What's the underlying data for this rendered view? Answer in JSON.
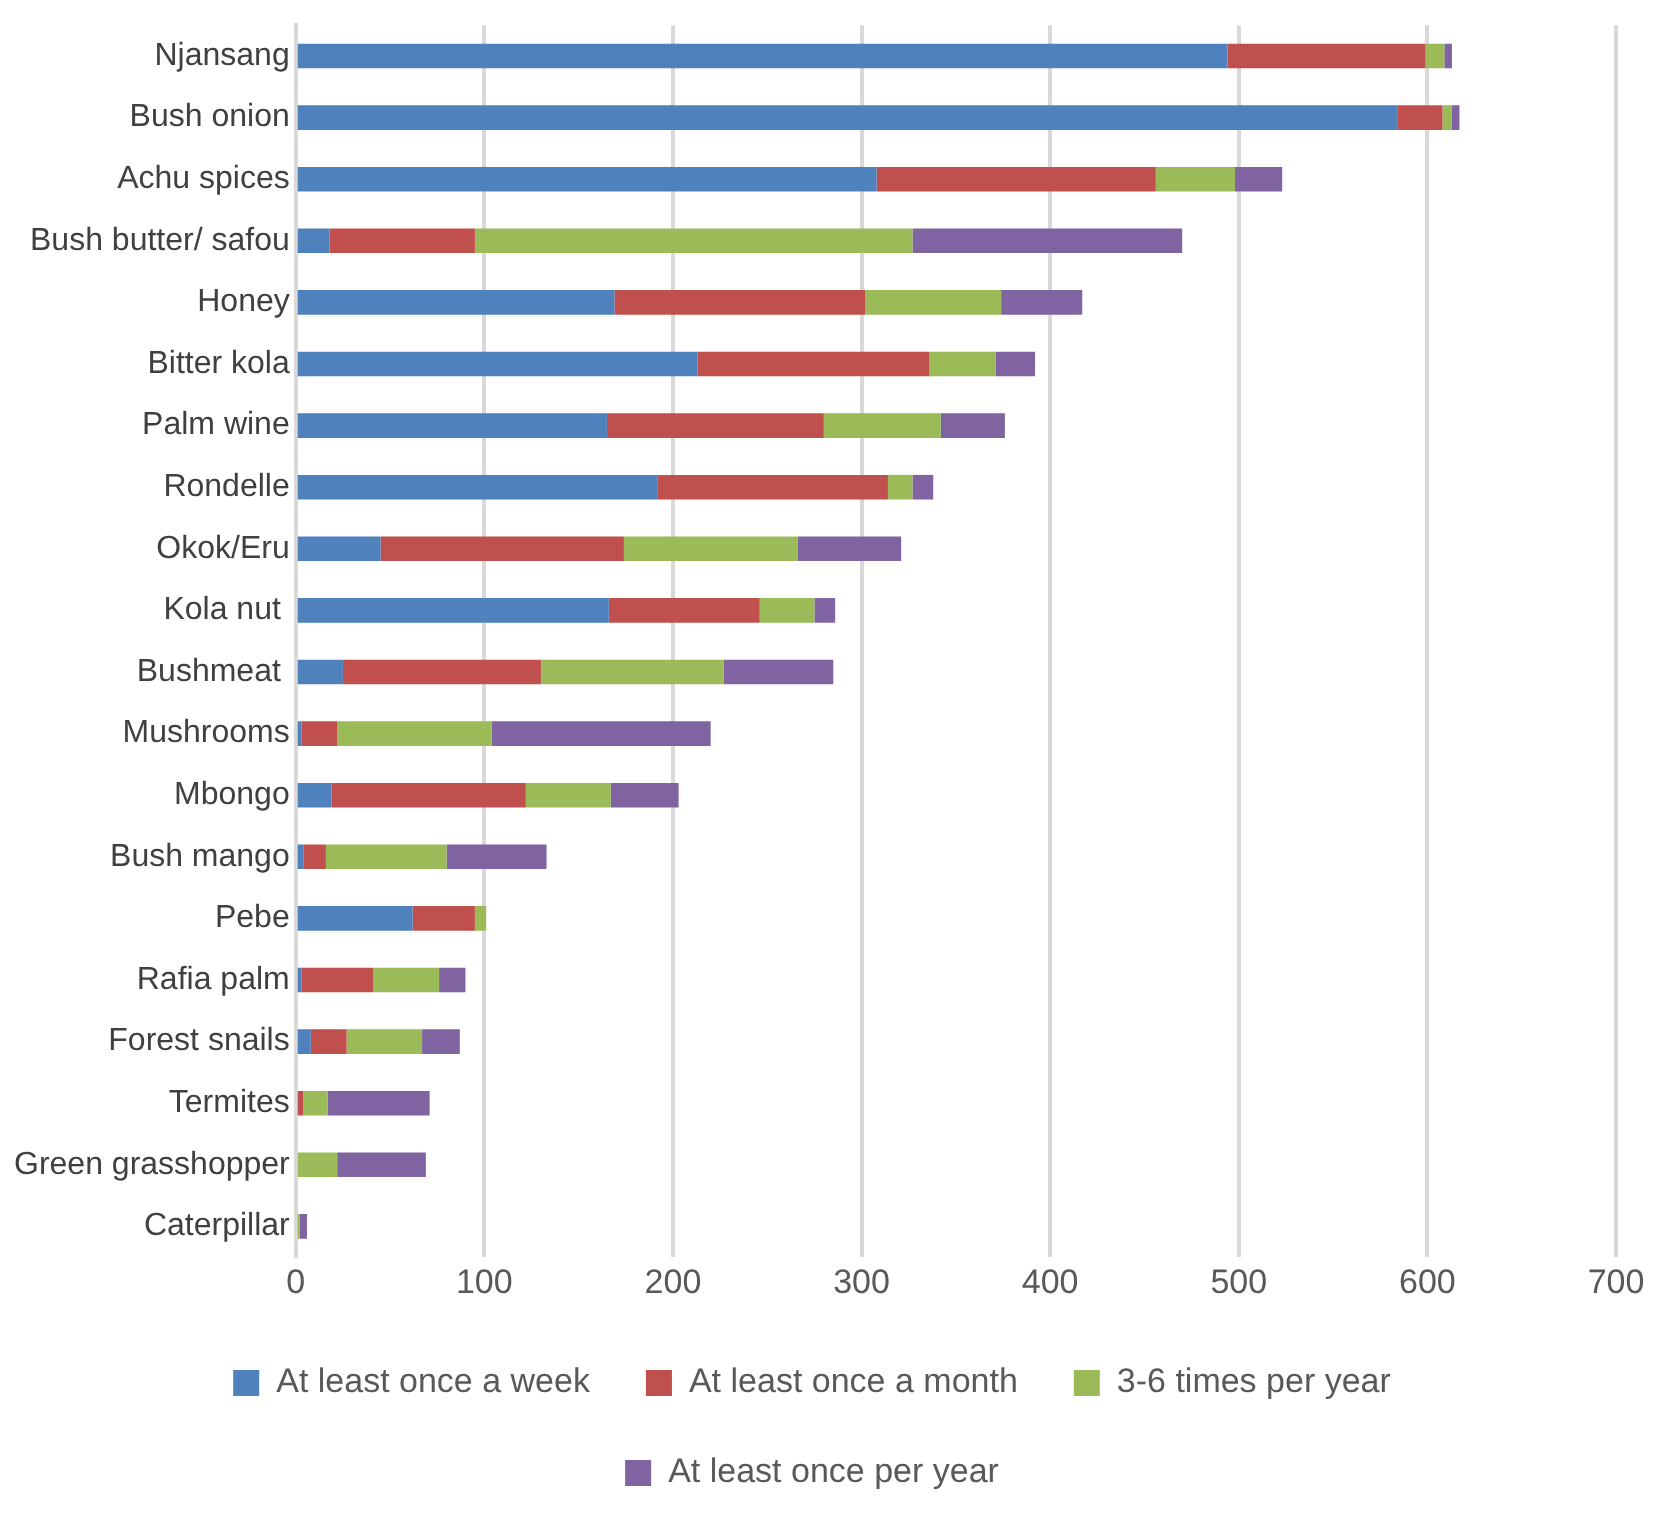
{
  "chart_data": {
    "type": "bar",
    "orientation": "horizontal",
    "stacked": true,
    "categories": [
      "Njansang",
      "Bush onion",
      "Achu spices",
      "Bush butter/ safou",
      "Honey",
      "Bitter kola",
      "Palm wine",
      "Rondelle",
      "Okok/Eru",
      "Kola nut ",
      "Bushmeat ",
      "Mushrooms",
      "Mbongo",
      "Bush mango",
      "Pebe",
      "Rafia palm",
      "Forest snails",
      "Termites",
      "Green grasshopper",
      "Caterpillar"
    ],
    "series": [
      {
        "name": "At least once a week",
        "color": "#4f81bd",
        "values": [
          494,
          584,
          308,
          18,
          169,
          213,
          165,
          192,
          45,
          166,
          25,
          3,
          19,
          4,
          62,
          3,
          8,
          0,
          0,
          0
        ]
      },
      {
        "name": "At least once a month",
        "color": "#c0504d",
        "values": [
          105,
          24,
          148,
          77,
          133,
          123,
          115,
          122,
          129,
          80,
          105,
          19,
          103,
          12,
          33,
          38,
          19,
          4,
          0,
          0
        ]
      },
      {
        "name": "3-6 times per year",
        "color": "#9bbb59",
        "values": [
          10,
          5,
          42,
          232,
          72,
          35,
          62,
          13,
          92,
          29,
          97,
          82,
          45,
          64,
          6,
          35,
          40,
          13,
          22,
          2
        ]
      },
      {
        "name": "At least once per year",
        "color": "#8064a2",
        "values": [
          4,
          4,
          25,
          143,
          43,
          21,
          34,
          11,
          55,
          11,
          58,
          116,
          36,
          53,
          null,
          14,
          20,
          54,
          47,
          4
        ]
      }
    ],
    "xlim": [
      0,
      700
    ],
    "xticks": [
      0,
      100,
      200,
      300,
      400,
      500,
      600,
      700
    ],
    "grid": "x",
    "legend": "bottom"
  }
}
